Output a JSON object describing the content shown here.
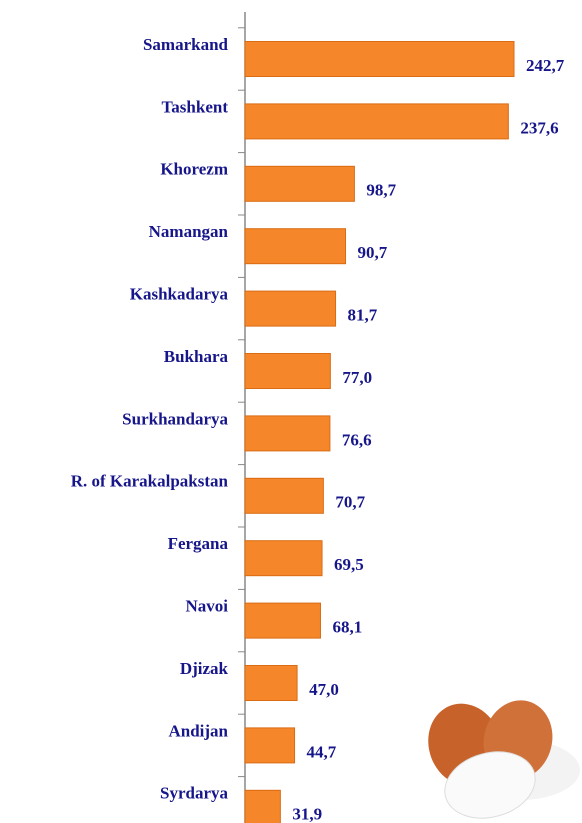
{
  "chart_data": {
    "type": "bar",
    "orientation": "horizontal",
    "categories": [
      "Samarkand",
      "Tashkent",
      "Khorezm",
      "Namangan",
      "Kashkadarya",
      "Bukhara",
      "Surkhandarya",
      "R. of Karakalpakstan",
      "Fergana",
      "Navoi",
      "Djizak",
      "Andijan",
      "Syrdarya"
    ],
    "values": [
      242.7,
      237.6,
      98.7,
      90.7,
      81.7,
      77.0,
      76.6,
      70.7,
      69.5,
      68.1,
      47.0,
      44.7,
      31.9
    ],
    "value_labels": [
      "242,7",
      "237,6",
      "98,7",
      "90,7",
      "81,7",
      "77,0",
      "76,6",
      "70,7",
      "69,5",
      "68,1",
      "47,0",
      "44,7",
      "31,9"
    ],
    "color": "#f5872a"
  }
}
